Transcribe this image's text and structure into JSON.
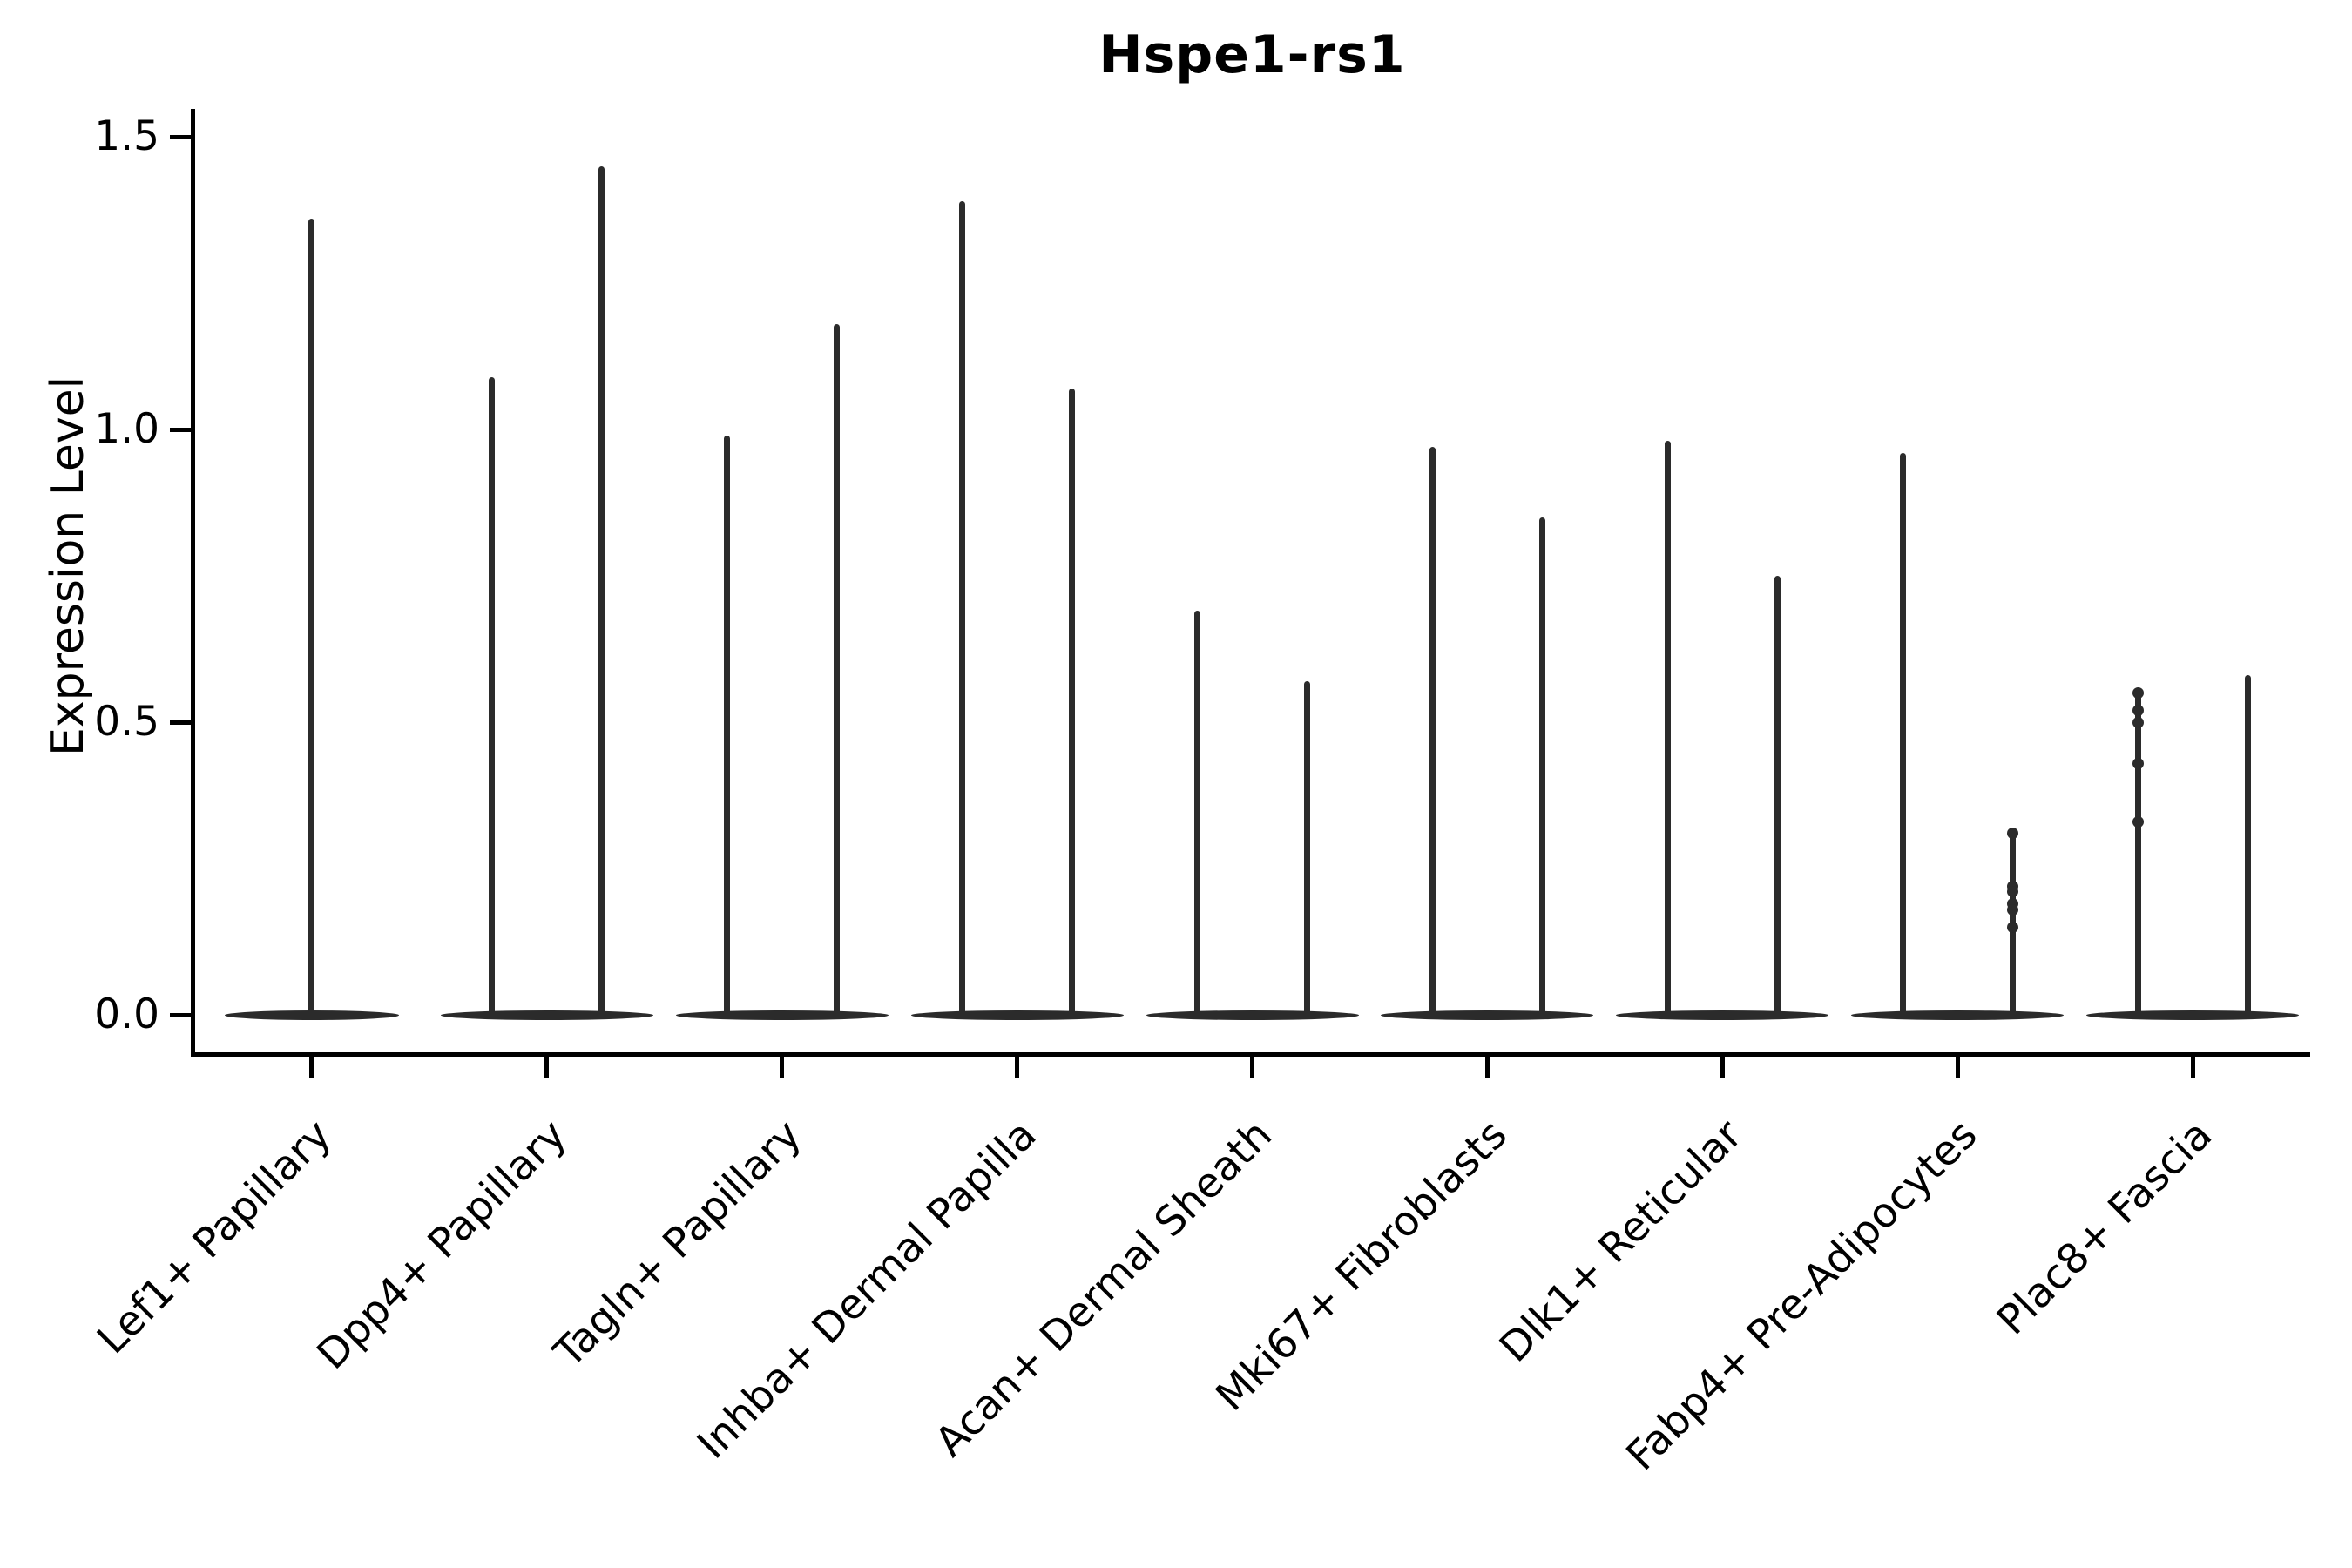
{
  "figure": {
    "title": "Hspe1-rs1",
    "ylabel": "Expression Level"
  },
  "chart_data": {
    "type": "violin",
    "title": "Hspe1-rs1",
    "xlabel": "",
    "ylabel": "Expression Level",
    "ylim": [
      -0.07,
      1.55
    ],
    "yticks": [
      0.0,
      0.5,
      1.0,
      1.5
    ],
    "ytick_labels": [
      "0.0",
      "0.5",
      "1.0",
      "1.5"
    ],
    "grid": false,
    "legend": "none",
    "orientation": "vertical",
    "description": "Single-cell expression violin plot; each violin is a wide flat body at expression 0 with one or two hairline tail spikes rising to the maximum expression value; small jitter dots are visible on the short tails.",
    "categories": [
      "Lef1+ Papillary",
      "Dpp4+ Papillary",
      "Tagln+ Papillary",
      "Inhba+ Dermal Papilla",
      "Acan+ Dermal Sheath",
      "Mki67+ Fibroblasts",
      "Dlk1+ Reticular",
      "Fabp4+ Pre-Adipocytes",
      "Plac8+ Fascia"
    ],
    "violins": [
      {
        "category": "Lef1+ Papillary",
        "bulk_at": 0.0,
        "tails": [
          {
            "max": 1.36,
            "dots": []
          }
        ]
      },
      {
        "category": "Dpp4+ Papillary",
        "bulk_at": 0.0,
        "tails": [
          {
            "max": 1.09,
            "dots": []
          },
          {
            "max": 1.45,
            "dots": []
          }
        ]
      },
      {
        "category": "Tagln+ Papillary",
        "bulk_at": 0.0,
        "tails": [
          {
            "max": 0.99,
            "dots": []
          },
          {
            "max": 1.18,
            "dots": []
          }
        ]
      },
      {
        "category": "Inhba+ Dermal Papilla",
        "bulk_at": 0.0,
        "tails": [
          {
            "max": 1.39,
            "dots": []
          },
          {
            "max": 1.07,
            "dots": []
          }
        ]
      },
      {
        "category": "Acan+ Dermal Sheath",
        "bulk_at": 0.0,
        "tails": [
          {
            "max": 0.69,
            "dots": []
          },
          {
            "max": 0.57,
            "dots": []
          }
        ]
      },
      {
        "category": "Mki67+ Fibroblasts",
        "bulk_at": 0.0,
        "tails": [
          {
            "max": 0.97,
            "dots": []
          },
          {
            "max": 0.85,
            "dots": []
          }
        ]
      },
      {
        "category": "Dlk1+ Reticular",
        "bulk_at": 0.0,
        "tails": [
          {
            "max": 0.98,
            "dots": []
          },
          {
            "max": 0.75,
            "dots": []
          }
        ]
      },
      {
        "category": "Fabp4+ Pre-Adipocytes",
        "bulk_at": 0.0,
        "tails": [
          {
            "max": 0.96,
            "dots": []
          },
          {
            "max": 0.31,
            "dots": [
              0.31,
              0.22,
              0.21,
              0.19,
              0.18,
              0.15
            ]
          }
        ]
      },
      {
        "category": "Plac8+ Fascia",
        "bulk_at": 0.0,
        "tails": [
          {
            "max": 0.55,
            "dots": [
              0.55,
              0.52,
              0.5,
              0.43,
              0.33
            ]
          },
          {
            "max": 0.58,
            "dots": []
          }
        ]
      }
    ],
    "colors": {
      "line": "#2b2b2b",
      "axis": "#000000",
      "text": "#000000",
      "background": "#ffffff"
    }
  }
}
